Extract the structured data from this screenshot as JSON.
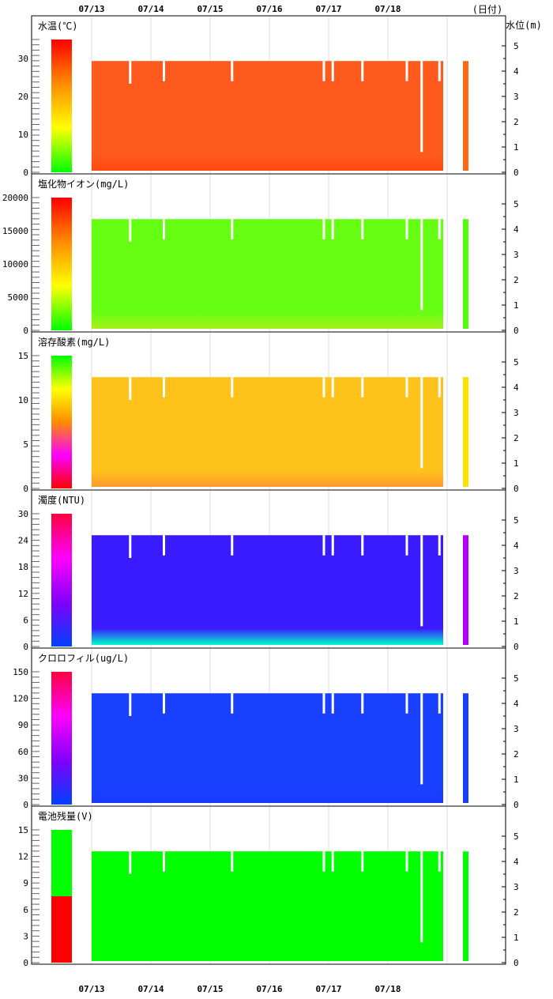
{
  "chart_data": {
    "type": "heatmap",
    "x_axis_label": "(日付)",
    "y_right_label": "水位(m)",
    "dates": [
      "07/13",
      "07/14",
      "07/15",
      "07/16",
      "07/17",
      "07/18"
    ],
    "right_ticks": [
      0,
      1,
      2,
      3,
      4,
      5
    ],
    "water_level_profile": {
      "approx_level_m": 4.4,
      "drops": [
        {
          "day_offset": 0.63,
          "level_m": 3.5
        },
        {
          "day_offset": 1.2,
          "level_m": 3.6
        },
        {
          "day_offset": 2.35,
          "level_m": 3.6
        },
        {
          "day_offset": 3.9,
          "level_m": 3.6
        },
        {
          "day_offset": 4.05,
          "level_m": 3.6
        },
        {
          "day_offset": 4.55,
          "level_m": 3.6
        },
        {
          "day_offset": 5.3,
          "level_m": 3.6
        },
        {
          "day_offset": 5.55,
          "level_m": 0.8
        },
        {
          "day_offset": 5.85,
          "level_m": 3.6
        }
      ]
    },
    "panels": [
      {
        "title": "水温(℃)",
        "ticks": [
          "0",
          "10",
          "20",
          "30"
        ],
        "tick_values": [
          0,
          10,
          20,
          30
        ],
        "ymax": 35,
        "scale_colors": [
          "#00ff00",
          "#ffff00",
          "#ff8c00",
          "#ff0000"
        ],
        "fill": "#ff5a1e",
        "fill_bottom": "#ff4a10",
        "tail_color": "#ff6a1a"
      },
      {
        "title": "塩化物イオン(mg/L)",
        "ticks": [
          "0",
          "5000",
          "10000",
          "15000",
          "20000"
        ],
        "tick_values": [
          0,
          5000,
          10000,
          15000,
          20000
        ],
        "ymax": 20000,
        "scale_colors": [
          "#00ff00",
          "#ffff00",
          "#ff8c00",
          "#ff0000"
        ],
        "fill": "#66ff14",
        "fill_bottom": "#a8f01a",
        "tail_color": "#55ff10"
      },
      {
        "title": "溶存酸素(mg/L)",
        "ticks": [
          "0",
          "5",
          "10",
          "15"
        ],
        "tick_values": [
          0,
          5,
          10,
          15
        ],
        "ymax": 15,
        "scale_colors": [
          "#ff0000",
          "#ff00ff",
          "#ff8c00",
          "#ffff00",
          "#00ff00"
        ],
        "fill": "#ffc21a",
        "fill_bottom": "#ff9a30",
        "tail_color": "#ffe000"
      },
      {
        "title": "濁度(NTU)",
        "ticks": [
          "0",
          "6",
          "12",
          "18",
          "24",
          "30"
        ],
        "tick_values": [
          0,
          6,
          12,
          18,
          24,
          30
        ],
        "ymax": 30,
        "scale_colors": [
          "#0040ff",
          "#8000ff",
          "#ff00ff",
          "#ff0040"
        ],
        "fill": "#3a1aff",
        "fill_bottom": "#00ffcc",
        "tail_color": "#b000ff"
      },
      {
        "title": "クロロフィル(ug/L)",
        "ticks": [
          "0",
          "30",
          "60",
          "90",
          "120",
          "150"
        ],
        "tick_values": [
          0,
          30,
          60,
          90,
          120,
          150
        ],
        "ymax": 150,
        "scale_colors": [
          "#0040ff",
          "#8000ff",
          "#ff00ff",
          "#ff0040"
        ],
        "fill": "#1a40ff",
        "fill_bottom": "#1a3aff",
        "tail_color": "#1a40ff"
      },
      {
        "title": "電池残量(V)",
        "ticks": [
          "0",
          "3",
          "6",
          "9",
          "12",
          "15"
        ],
        "tick_values": [
          0,
          3,
          6,
          9,
          12,
          15
        ],
        "ymax": 15,
        "scale_colors": [
          "#ff0000",
          "#00ff00"
        ],
        "fill": "#00ff00",
        "fill_bottom": "#00ff00",
        "tail_color": "#00ff00",
        "split_value": 7.5
      }
    ]
  }
}
